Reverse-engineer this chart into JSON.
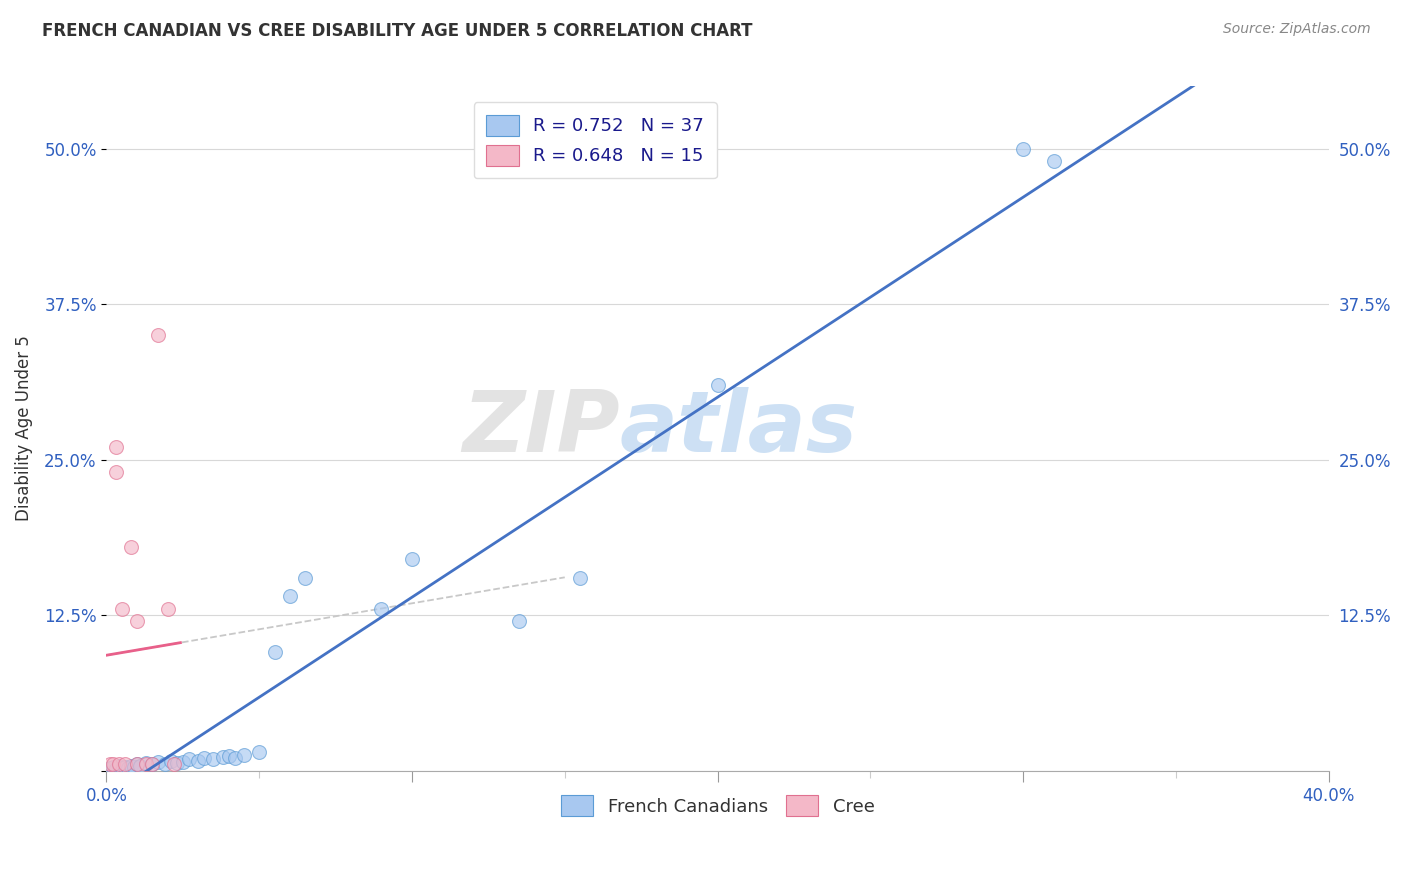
{
  "title": "FRENCH CANADIAN VS CREE DISABILITY AGE UNDER 5 CORRELATION CHART",
  "source": "Source: ZipAtlas.com",
  "ylabel_label": "Disability Age Under 5",
  "watermark_zip": "ZIP",
  "watermark_atlas": "atlas",
  "xlim": [
    0.0,
    0.4
  ],
  "ylim": [
    0.0,
    0.55
  ],
  "xticks": [
    0.0,
    0.1,
    0.2,
    0.3,
    0.4
  ],
  "xtick_labels": [
    "0.0%",
    "",
    "",
    "",
    "40.0%"
  ],
  "yticks": [
    0.0,
    0.125,
    0.25,
    0.375,
    0.5
  ],
  "ytick_labels_left": [
    "",
    "12.5%",
    "25.0%",
    "37.5%",
    "50.0%"
  ],
  "ytick_labels_right": [
    "",
    "12.5%",
    "25.0%",
    "37.5%",
    "50.0%"
  ],
  "french_canadians_x": [
    0.001,
    0.002,
    0.003,
    0.004,
    0.005,
    0.006,
    0.007,
    0.008,
    0.009,
    0.01,
    0.011,
    0.013,
    0.015,
    0.017,
    0.019,
    0.021,
    0.023,
    0.025,
    0.027,
    0.03,
    0.032,
    0.035,
    0.038,
    0.04,
    0.042,
    0.045,
    0.05,
    0.055,
    0.06,
    0.065,
    0.09,
    0.1,
    0.135,
    0.155,
    0.2,
    0.3,
    0.31
  ],
  "french_canadians_y": [
    0.002,
    0.003,
    0.001,
    0.004,
    0.002,
    0.003,
    0.002,
    0.004,
    0.003,
    0.005,
    0.004,
    0.006,
    0.005,
    0.007,
    0.005,
    0.008,
    0.006,
    0.007,
    0.009,
    0.008,
    0.01,
    0.009,
    0.011,
    0.012,
    0.01,
    0.013,
    0.015,
    0.095,
    0.14,
    0.155,
    0.13,
    0.17,
    0.12,
    0.155,
    0.31,
    0.5,
    0.49
  ],
  "cree_x": [
    0.001,
    0.002,
    0.003,
    0.003,
    0.004,
    0.005,
    0.006,
    0.008,
    0.01,
    0.01,
    0.013,
    0.015,
    0.017,
    0.02,
    0.022
  ],
  "cree_y": [
    0.005,
    0.005,
    0.24,
    0.26,
    0.005,
    0.13,
    0.005,
    0.18,
    0.005,
    0.12,
    0.005,
    0.005,
    0.35,
    0.13,
    0.005
  ],
  "fc_color": "#a8c8f0",
  "fc_edge_color": "#5b9bd5",
  "cree_color": "#f4b8c8",
  "cree_edge_color": "#e07090",
  "fc_line_color": "#4472c4",
  "cree_line_color": "#e8608a",
  "cree_dashed_color": "#c8c8c8",
  "legend_fc_label": "R = 0.752   N = 37",
  "legend_cree_label": "R = 0.648   N = 15",
  "legend_bottom_fc": "French Canadians",
  "legend_bottom_cree": "Cree",
  "marker_size": 100,
  "alpha": 0.65,
  "grid_color": "#d8d8d8"
}
